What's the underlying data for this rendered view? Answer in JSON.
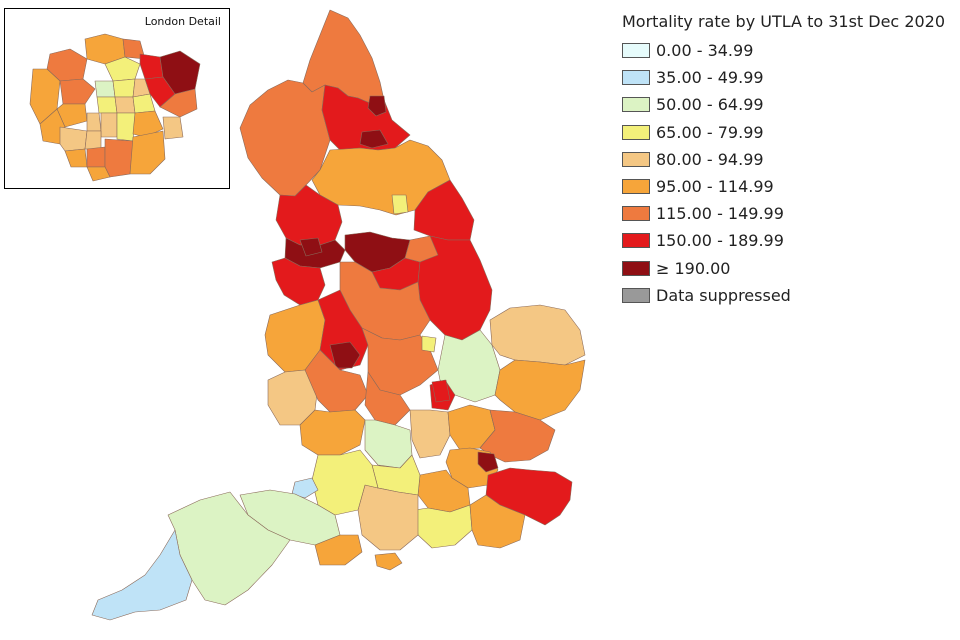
{
  "inset": {
    "title": "London Detail"
  },
  "legend": {
    "title": "Mortality rate by UTLA to 31st Dec 2020",
    "items": [
      {
        "label": "0.00 - 34.99",
        "color": "#e6fbfb"
      },
      {
        "label": "35.00 - 49.99",
        "color": "#bfe3f7"
      },
      {
        "label": "50.00 - 64.99",
        "color": "#dcf3c4"
      },
      {
        "label": "65.00 - 79.99",
        "color": "#f3f07a"
      },
      {
        "label": "80.00 - 94.99",
        "color": "#f4c784"
      },
      {
        "label": "95.00 - 114.99",
        "color": "#f6a53a"
      },
      {
        "label": "115.00 - 149.99",
        "color": "#ee7a3f"
      },
      {
        "label": "150.00 - 189.99",
        "color": "#e31a1c"
      },
      {
        "label": "≥ 190.00",
        "color": "#8f0f14"
      },
      {
        "label": "Data suppressed",
        "color": "#999999"
      }
    ]
  }
}
